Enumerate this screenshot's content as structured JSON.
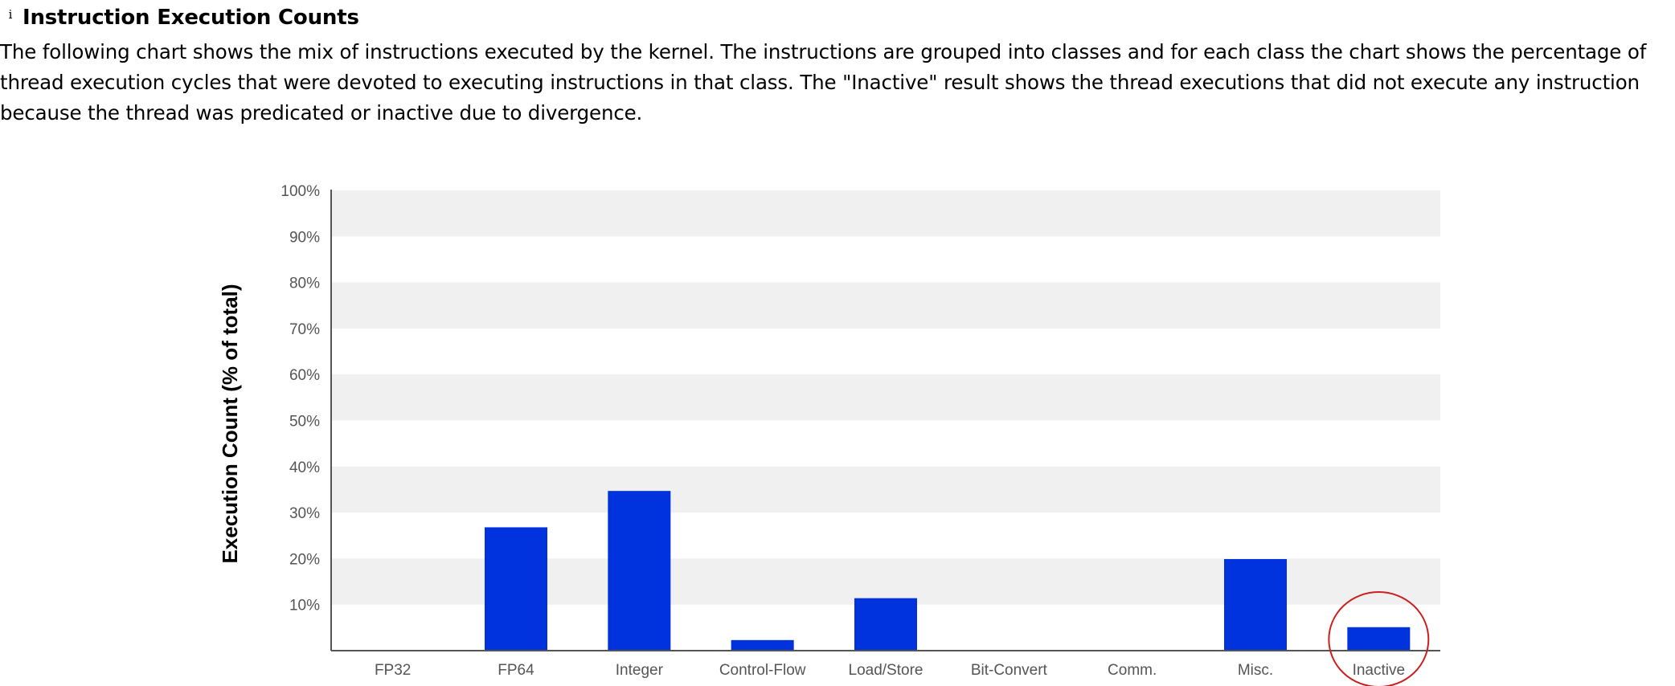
{
  "section": {
    "info_icon": "i",
    "title": "Instruction Execution Counts",
    "description": "The following chart shows the mix of instructions executed by the kernel. The instructions are grouped into classes and for each class the chart shows the percentage of thread execution cycles that were devoted to executing instructions in that class. The \"Inactive\" result shows the thread executions that did not execute any instruction because the thread was predicated or inactive due to divergence."
  },
  "chart_data": {
    "type": "bar",
    "title": "",
    "xlabel": "",
    "ylabel": "Execution Count (% of total)",
    "categories": [
      "FP32",
      "FP64",
      "Integer",
      "Control-Flow",
      "Load/Store",
      "Bit-Convert",
      "Comm.",
      "Misc.",
      "Inactive"
    ],
    "values": [
      0,
      26.8,
      34.7,
      2.3,
      11.4,
      0,
      0,
      19.9,
      5.1
    ],
    "ylim": [
      0,
      100
    ],
    "yticks": [
      "10%",
      "20%",
      "30%",
      "40%",
      "50%",
      "60%",
      "70%",
      "80%",
      "90%",
      "100%"
    ],
    "grid": "alternating horizontal bands",
    "bar_color": "#0033dd",
    "band_color": "#f0f0f0",
    "annotation": {
      "type": "red-circle",
      "target": "Inactive",
      "color": "#cc1f1f"
    }
  }
}
